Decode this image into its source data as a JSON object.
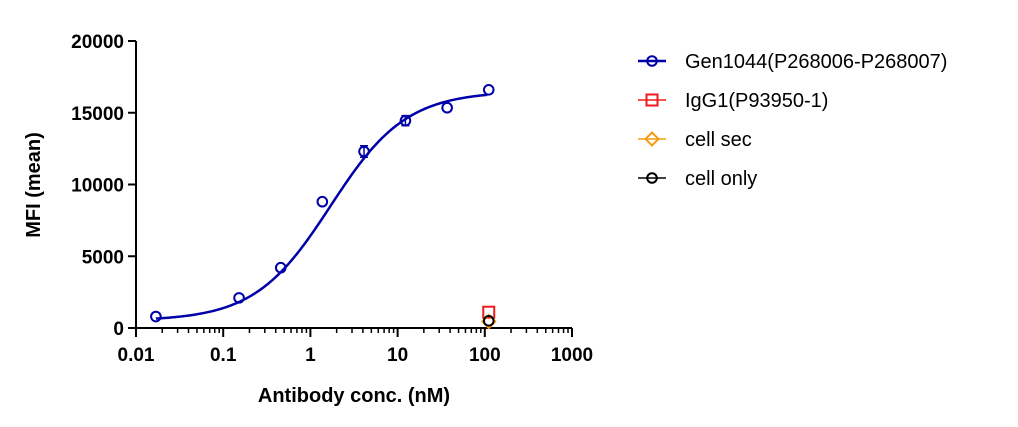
{
  "chart_data": {
    "type": "scatter",
    "title": "",
    "xlabel": "Antibody conc. (nM)",
    "ylabel": "MFI (mean)",
    "xscale": "log",
    "xlim": [
      0.01,
      1000
    ],
    "ylim": [
      0,
      20000
    ],
    "x_ticks": [
      0.01,
      0.1,
      1,
      10,
      100,
      1000
    ],
    "x_tick_labels": [
      "0.01",
      "0.1",
      "1",
      "10",
      "100",
      "1000"
    ],
    "y_ticks": [
      0,
      5000,
      10000,
      15000,
      20000
    ],
    "y_tick_labels": [
      "0",
      "5000",
      "10000",
      "15000",
      "20000"
    ],
    "grid": false,
    "legend_position": "right",
    "series": [
      {
        "name": "Gen1044(P268006-P268007)",
        "color": "#0000a8",
        "marker": "circle",
        "x": [
          0.0169,
          0.152,
          0.457,
          1.37,
          4.12,
          12.3,
          37.0,
          111
        ],
        "y": [
          800,
          2100,
          4200,
          8800,
          12300,
          14450,
          15350,
          16600
        ],
        "error": [
          0,
          0,
          0,
          0,
          400,
          350,
          0,
          0
        ],
        "fit_curve": {
          "model": "4PL",
          "bottom": 500,
          "top": 16500,
          "ec50": 1.7,
          "hill": 1.0
        }
      },
      {
        "name": "IgG1(P93950-1)",
        "color": "#ee1c1c",
        "marker": "square",
        "x": [
          111
        ],
        "y": [
          1100
        ]
      },
      {
        "name": "cell sec",
        "color": "#f39c12",
        "marker": "diamond",
        "x": [
          111
        ],
        "y": [
          450
        ]
      },
      {
        "name": "cell only",
        "color": "#000000",
        "marker": "circle",
        "x": [
          111
        ],
        "y": [
          500
        ]
      }
    ]
  }
}
